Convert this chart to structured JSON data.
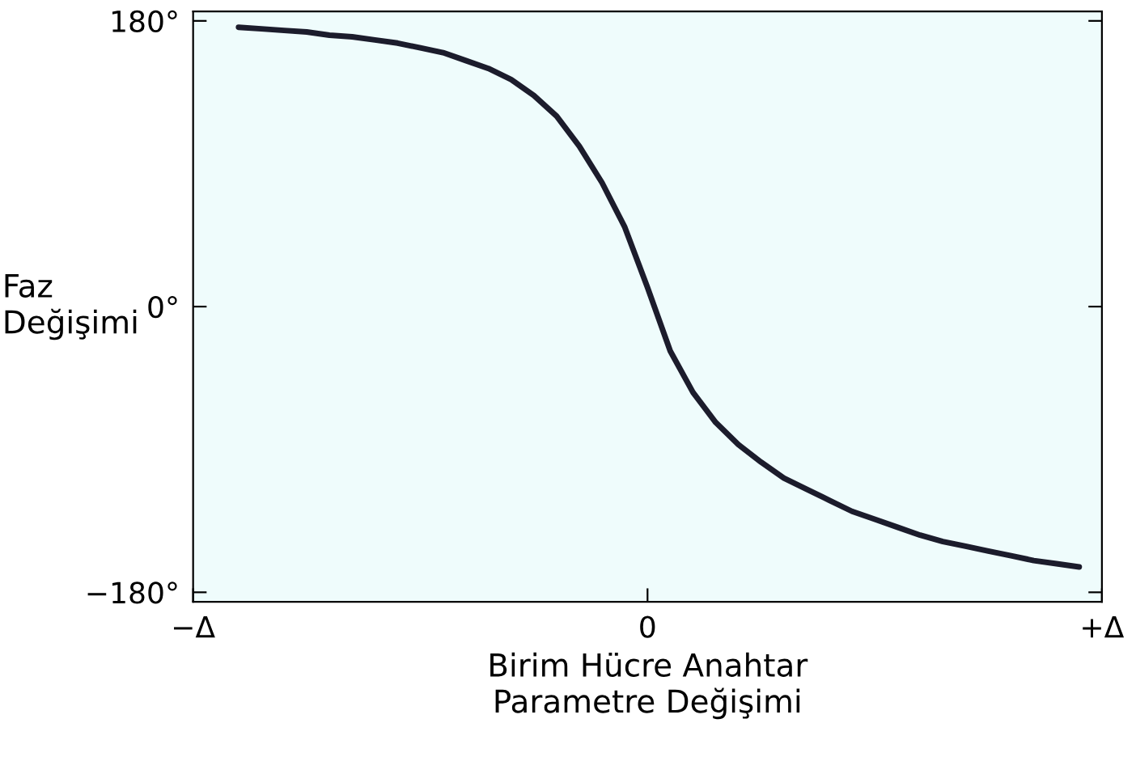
{
  "chart_data": {
    "type": "line",
    "xlabel": "Birim Hücre Anahtar\nParametre Değişimi",
    "ylabel": "Faz\nDeğişimi",
    "categories": [
      "−Δ",
      null,
      null,
      null,
      null,
      null,
      null,
      null,
      null,
      null,
      null,
      null,
      null,
      null,
      null,
      null,
      null,
      null,
      null,
      null,
      "0",
      null,
      null,
      null,
      null,
      null,
      null,
      null,
      null,
      null,
      null,
      null,
      null,
      null,
      null,
      null,
      null,
      null,
      null,
      null,
      "+Δ"
    ],
    "series": [
      {
        "color": "#1c1c2c",
        "values": [
          null,
          null,
          176,
          175,
          174,
          173,
          171,
          170,
          168,
          166,
          163,
          160,
          155,
          150,
          143,
          133,
          120,
          101,
          78,
          50,
          12,
          -28,
          -54,
          -73,
          -87,
          -98,
          -108,
          -115,
          -122,
          -129,
          -134,
          -139,
          -144,
          -148,
          -151,
          -154,
          -157,
          -160,
          -162,
          -164,
          null
        ]
      }
    ],
    "ylim": [
      -186,
      186
    ],
    "yticks": [
      {
        "value": -180,
        "label": "−180°"
      },
      {
        "value": 0,
        "label": "0°"
      },
      {
        "value": 180,
        "label": "180°"
      }
    ],
    "grid": false,
    "legend": false,
    "marker": "none",
    "line_style": "solid"
  }
}
